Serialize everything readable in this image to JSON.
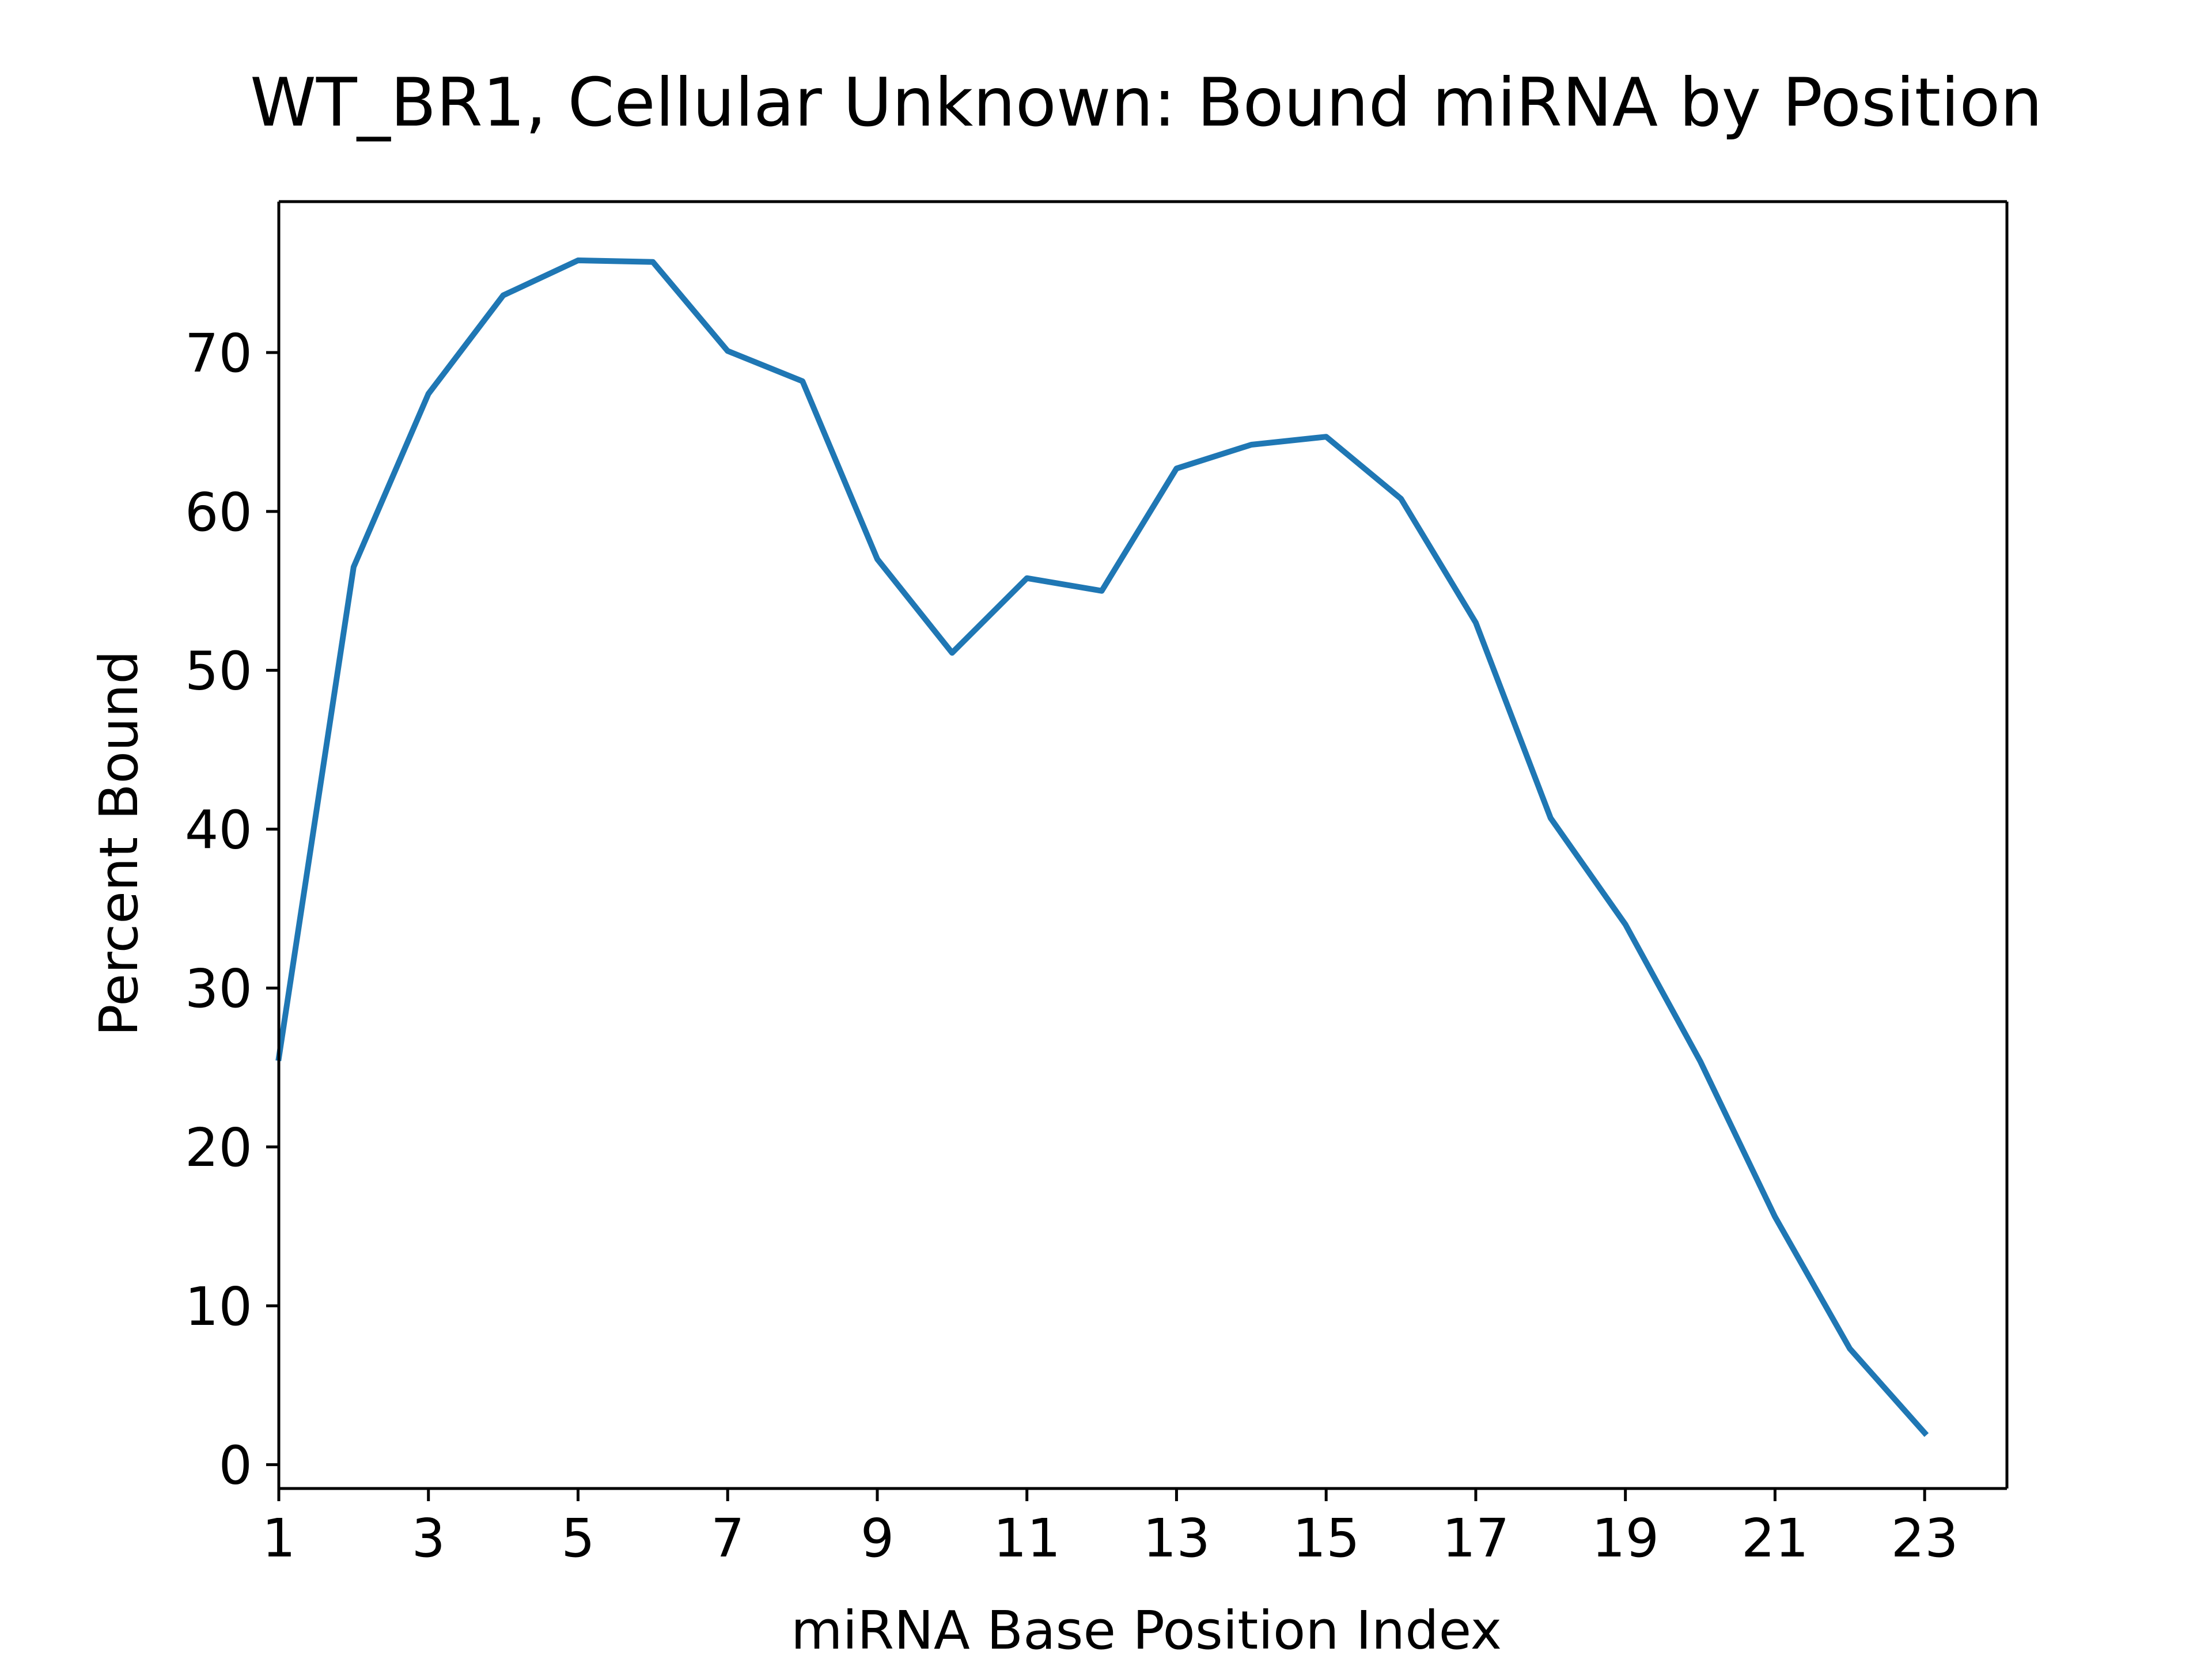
{
  "chart_data": {
    "type": "line",
    "title": "WT_BR1, Cellular Unknown: Bound miRNA by Position",
    "xlabel": "miRNA Base Position Index",
    "ylabel": "Percent Bound",
    "x": [
      1,
      2,
      3,
      4,
      5,
      6,
      7,
      8,
      9,
      10,
      11,
      12,
      13,
      14,
      15,
      16,
      17,
      18,
      19,
      20,
      21,
      22,
      23
    ],
    "series": [
      {
        "values": [
          25.6,
          56.5,
          67.4,
          73.6,
          75.8,
          75.7,
          70.1,
          68.2,
          57.0,
          51.1,
          55.8,
          55.0,
          62.7,
          64.2,
          64.7,
          60.8,
          53.0,
          40.7,
          34.0,
          25.4,
          15.6,
          7.3,
          2.0
        ],
        "color": "#1f77b4"
      }
    ],
    "xticks": [
      1,
      3,
      5,
      7,
      9,
      11,
      13,
      15,
      17,
      19,
      21,
      23
    ],
    "yticks": [
      0,
      10,
      20,
      30,
      40,
      50,
      60,
      70
    ],
    "xlim": [
      1,
      24.1
    ],
    "ylim": [
      -1.5,
      79.5
    ],
    "grid": false,
    "legend": "none"
  }
}
